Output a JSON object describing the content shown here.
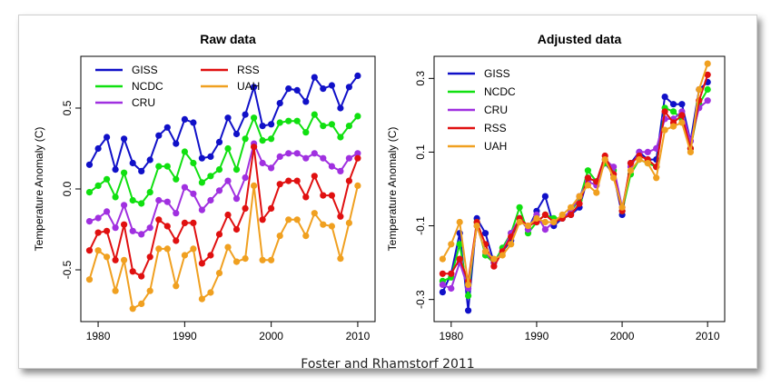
{
  "caption": "Foster and Rhamstorf 2011",
  "chart_data": [
    {
      "type": "line",
      "title": "Raw data",
      "xlabel": "",
      "ylabel": "Temperature Anomaly (C)",
      "x": [
        1979,
        1980,
        1981,
        1982,
        1983,
        1984,
        1985,
        1986,
        1987,
        1988,
        1989,
        1990,
        1991,
        1992,
        1993,
        1994,
        1995,
        1996,
        1997,
        1998,
        1999,
        2000,
        2001,
        2002,
        2003,
        2004,
        2005,
        2006,
        2007,
        2008,
        2009,
        2010
      ],
      "xlim": [
        1978,
        2012
      ],
      "ylim": [
        -0.82,
        0.82
      ],
      "xticks": [
        1980,
        1990,
        2000,
        2010
      ],
      "xtick_labels": [
        "1980",
        "1990",
        "2000",
        "2010"
      ],
      "yticks": [
        -0.5,
        0.0,
        0.5
      ],
      "ytick_labels": [
        "-0.5",
        "0.0",
        "0.5"
      ],
      "legend_position": "top-left",
      "series": [
        {
          "name": "GISS",
          "color": "#1010c8",
          "values": [
            0.15,
            0.25,
            0.32,
            0.12,
            0.31,
            0.16,
            0.11,
            0.18,
            0.33,
            0.38,
            0.28,
            0.43,
            0.41,
            0.19,
            0.2,
            0.29,
            0.44,
            0.34,
            0.46,
            0.63,
            0.39,
            0.4,
            0.53,
            0.62,
            0.61,
            0.54,
            0.69,
            0.62,
            0.64,
            0.5,
            0.63,
            0.7
          ]
        },
        {
          "name": "NCDC",
          "color": "#10e010",
          "values": [
            -0.02,
            0.02,
            0.06,
            -0.05,
            0.1,
            -0.07,
            -0.09,
            -0.02,
            0.14,
            0.14,
            0.06,
            0.23,
            0.16,
            0.04,
            0.08,
            0.12,
            0.25,
            0.12,
            0.31,
            0.44,
            0.3,
            0.31,
            0.41,
            0.42,
            0.42,
            0.35,
            0.46,
            0.39,
            0.4,
            0.32,
            0.39,
            0.45
          ]
        },
        {
          "name": "CRU",
          "color": "#a030e0",
          "values": [
            -0.2,
            -0.18,
            -0.14,
            -0.24,
            -0.1,
            -0.26,
            -0.28,
            -0.24,
            -0.07,
            -0.08,
            -0.15,
            0.01,
            -0.03,
            -0.13,
            -0.07,
            -0.01,
            0.05,
            -0.06,
            0.07,
            0.28,
            0.16,
            0.13,
            0.2,
            0.22,
            0.22,
            0.19,
            0.22,
            0.19,
            0.14,
            0.11,
            0.19,
            0.22
          ]
        },
        {
          "name": "RSS",
          "color": "#e01010",
          "values": [
            -0.38,
            -0.27,
            -0.26,
            -0.44,
            -0.22,
            -0.51,
            -0.54,
            -0.42,
            -0.19,
            -0.23,
            -0.32,
            -0.21,
            -0.21,
            -0.46,
            -0.41,
            -0.28,
            -0.16,
            -0.25,
            -0.12,
            0.26,
            -0.19,
            -0.12,
            0.03,
            0.05,
            0.05,
            -0.05,
            0.08,
            -0.04,
            -0.04,
            -0.17,
            0.05,
            0.19
          ]
        },
        {
          "name": "UAH",
          "color": "#f0a020",
          "values": [
            -0.56,
            -0.38,
            -0.42,
            -0.63,
            -0.44,
            -0.74,
            -0.71,
            -0.63,
            -0.37,
            -0.37,
            -0.6,
            -0.41,
            -0.37,
            -0.68,
            -0.64,
            -0.52,
            -0.36,
            -0.45,
            -0.43,
            0.02,
            -0.44,
            -0.44,
            -0.29,
            -0.19,
            -0.19,
            -0.29,
            -0.15,
            -0.22,
            -0.23,
            -0.43,
            -0.21,
            0.02
          ]
        }
      ]
    },
    {
      "type": "line",
      "title": "Adjusted data",
      "xlabel": "",
      "ylabel": "Temperature Anomaly (C)",
      "x": [
        1979,
        1980,
        1981,
        1982,
        1983,
        1984,
        1985,
        1986,
        1987,
        1988,
        1989,
        1990,
        1991,
        1992,
        1993,
        1994,
        1995,
        1996,
        1997,
        1998,
        1999,
        2000,
        2001,
        2002,
        2003,
        2004,
        2005,
        2006,
        2007,
        2008,
        2009,
        2010
      ],
      "xlim": [
        1978,
        2012
      ],
      "ylim": [
        -0.36,
        0.36
      ],
      "xticks": [
        1980,
        1990,
        2000,
        2010
      ],
      "xtick_labels": [
        "1980",
        "1990",
        "2000",
        "2010"
      ],
      "yticks": [
        -0.3,
        -0.1,
        0.1,
        0.3
      ],
      "ytick_labels": [
        "-0.3",
        "-0.1",
        "0.1",
        "0.3"
      ],
      "legend_position": "top-left",
      "series": [
        {
          "name": "GISS",
          "color": "#1010c8",
          "values": [
            -0.28,
            -0.23,
            -0.12,
            -0.33,
            -0.08,
            -0.12,
            -0.2,
            -0.17,
            -0.14,
            -0.08,
            -0.11,
            -0.06,
            -0.02,
            -0.1,
            -0.08,
            -0.07,
            -0.05,
            0.03,
            0.02,
            0.07,
            0.04,
            -0.07,
            0.07,
            0.1,
            0.08,
            0.08,
            0.25,
            0.23,
            0.23,
            0.13,
            0.27,
            0.29
          ]
        },
        {
          "name": "NCDC",
          "color": "#10e010",
          "values": [
            -0.25,
            -0.24,
            -0.15,
            -0.29,
            -0.09,
            -0.18,
            -0.2,
            -0.16,
            -0.12,
            -0.05,
            -0.12,
            -0.09,
            -0.07,
            -0.08,
            -0.08,
            -0.06,
            -0.03,
            0.05,
            0.02,
            0.07,
            0.05,
            -0.06,
            0.04,
            0.08,
            0.07,
            0.06,
            0.22,
            0.21,
            0.19,
            0.11,
            0.23,
            0.27
          ]
        },
        {
          "name": "CRU",
          "color": "#a030e0",
          "values": [
            -0.26,
            -0.27,
            -0.2,
            -0.27,
            -0.1,
            -0.17,
            -0.2,
            -0.17,
            -0.12,
            -0.08,
            -0.11,
            -0.07,
            -0.11,
            -0.09,
            -0.08,
            -0.06,
            -0.02,
            0.02,
            0.01,
            0.08,
            0.06,
            -0.05,
            0.06,
            0.1,
            0.1,
            0.11,
            0.19,
            0.19,
            0.21,
            0.13,
            0.22,
            0.24
          ]
        },
        {
          "name": "RSS",
          "color": "#e01010",
          "values": [
            -0.23,
            -0.23,
            -0.19,
            -0.25,
            -0.09,
            -0.15,
            -0.21,
            -0.17,
            -0.13,
            -0.08,
            -0.1,
            -0.09,
            -0.07,
            -0.09,
            -0.08,
            -0.07,
            -0.04,
            0.03,
            0.02,
            0.09,
            0.04,
            -0.06,
            0.07,
            0.09,
            0.08,
            0.06,
            0.21,
            0.18,
            0.2,
            0.11,
            0.24,
            0.31
          ]
        },
        {
          "name": "UAH",
          "color": "#f0a020",
          "values": [
            -0.19,
            -0.15,
            -0.09,
            -0.26,
            -0.1,
            -0.17,
            -0.19,
            -0.18,
            -0.15,
            -0.09,
            -0.1,
            -0.08,
            -0.09,
            -0.09,
            -0.07,
            -0.05,
            -0.02,
            0.01,
            -0.01,
            0.08,
            0.03,
            -0.05,
            0.05,
            0.08,
            0.07,
            0.03,
            0.16,
            0.17,
            0.18,
            0.1,
            0.27,
            0.34
          ]
        }
      ]
    }
  ]
}
